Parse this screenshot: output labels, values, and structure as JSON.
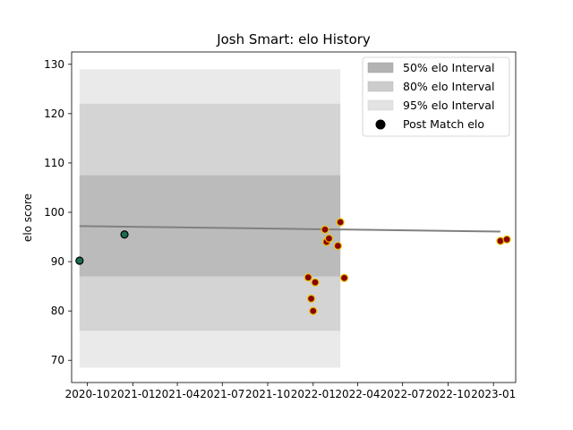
{
  "chart_data": {
    "type": "scatter",
    "title": "Josh Smart: elo History",
    "xlabel": "",
    "ylabel": "elo score",
    "x_ticks": [
      "2020-10",
      "2021-01",
      "2021-04",
      "2021-07",
      "2021-10",
      "2022-01",
      "2022-04",
      "2022-07",
      "2022-10",
      "2023-01"
    ],
    "y_ticks": [
      70,
      80,
      90,
      100,
      110,
      120,
      130
    ],
    "xlim": [
      "2020-08-30",
      "2023-02-15"
    ],
    "ylim": [
      65.5,
      132.5
    ],
    "grid": false,
    "legend": {
      "placement": "top-right",
      "entries": [
        "50% elo Interval",
        "80% elo Interval",
        "95% elo Interval",
        "Post Match elo"
      ]
    },
    "intervals": {
      "x": [
        "2020-09-15",
        "2022-02-25"
      ],
      "band_95": {
        "low": 68.5,
        "high": 129.0
      },
      "band_80": {
        "low": 76.0,
        "high": 122.0
      },
      "band_50": {
        "low": 87.0,
        "high": 107.5
      },
      "mean": 97.2
    },
    "trend": {
      "x": [
        "2020-09-15",
        "2023-01-15"
      ],
      "y": [
        97.2,
        96.1
      ]
    },
    "series": [
      {
        "color_fill": "#1a6b4f",
        "color_edge": "#000000",
        "points": [
          {
            "x": "2020-09-15",
            "y": 90.2
          },
          {
            "x": "2020-12-15",
            "y": 95.5
          }
        ]
      },
      {
        "color_fill": "#8b0000",
        "color_edge": "#e8c400",
        "points": [
          {
            "x": "2021-12-22",
            "y": 86.8
          },
          {
            "x": "2021-12-28",
            "y": 82.5
          },
          {
            "x": "2022-01-01",
            "y": 80.0
          },
          {
            "x": "2022-01-05",
            "y": 85.8
          },
          {
            "x": "2022-01-25",
            "y": 96.5
          },
          {
            "x": "2022-01-28",
            "y": 94.0
          },
          {
            "x": "2022-02-02",
            "y": 94.7
          },
          {
            "x": "2022-02-20",
            "y": 93.2
          },
          {
            "x": "2022-02-25",
            "y": 98.0
          },
          {
            "x": "2022-03-05",
            "y": 86.7
          },
          {
            "x": "2023-01-15",
            "y": 94.2
          },
          {
            "x": "2023-01-28",
            "y": 94.5
          }
        ]
      }
    ],
    "colors": {
      "band_50": "#b3b3b3",
      "band_80": "#cccccc",
      "band_95": "#e3e3e3",
      "trend": "#808080",
      "legend_marker": "#000000"
    }
  }
}
